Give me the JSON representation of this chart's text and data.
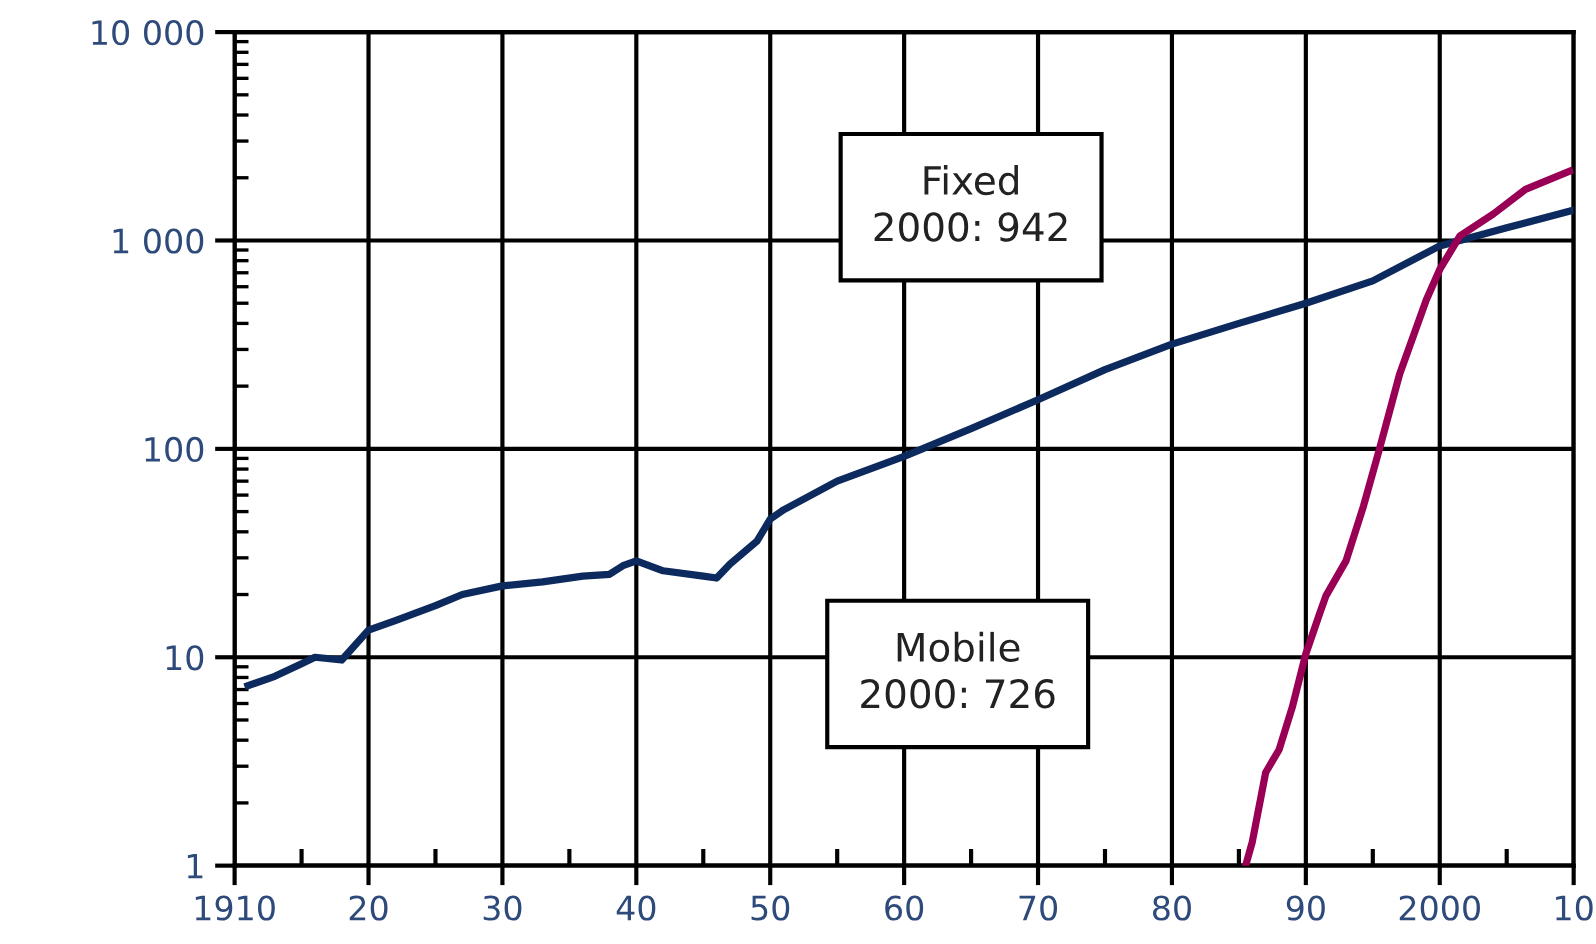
{
  "chart_data": {
    "type": "line",
    "log": "y",
    "grid": true,
    "marker": "none",
    "line_style": "solid",
    "xlim": [
      1910,
      2010
    ],
    "xticks": [
      1910,
      {
        "value": 1920,
        "label": "20"
      },
      {
        "value": 1930,
        "label": "30"
      },
      {
        "value": 1940,
        "label": "40"
      },
      {
        "value": 1950,
        "label": "50"
      },
      {
        "value": 1960,
        "label": "60"
      },
      {
        "value": 1970,
        "label": "70"
      },
      {
        "value": 1980,
        "label": "80"
      },
      {
        "value": 1990,
        "label": "90"
      },
      2000,
      {
        "value": 2010,
        "label": "10"
      }
    ],
    "ylim": [
      1,
      10000
    ],
    "yticks": [
      1,
      10,
      100,
      {
        "value": 1000,
        "label": "1 000"
      },
      {
        "value": 10000,
        "label": "10 000"
      }
    ],
    "series": [
      {
        "color": "#0d2a5e",
        "x": [
          1911,
          1913,
          1915,
          1916,
          1918,
          1920,
          1922,
          1925,
          1927,
          1930,
          1933,
          1936,
          1938,
          1939,
          1940,
          1942,
          1945,
          1946,
          1947,
          1949,
          1950,
          1951,
          1955,
          1960,
          1965,
          1970,
          1975,
          1980,
          1985,
          1990,
          1995,
          2000,
          2005,
          2010
        ],
        "values": [
          7.3,
          8.1,
          9.3,
          10,
          9.7,
          13.5,
          15,
          17.7,
          20,
          22,
          23,
          24.5,
          25,
          27.5,
          29,
          26,
          24.5,
          24,
          28,
          36,
          46,
          51,
          70,
          92,
          125,
          172,
          240,
          318,
          400,
          500,
          640,
          942,
          1150,
          1400
        ]
      },
      {
        "color": "#990055",
        "x": [
          1985.5,
          1986,
          1987,
          1988,
          1989,
          1990,
          1991,
          1991.5,
          1993,
          1994.3,
          1995.5,
          1997,
          1999,
          2000,
          2001.5,
          2004,
          2006.4,
          2009.7
        ],
        "values": [
          1,
          1.3,
          2.8,
          3.6,
          5.8,
          10.4,
          16,
          19.7,
          29,
          53,
          100,
          228,
          520,
          726,
          1050,
          1340,
          1760,
          2150
        ]
      }
    ],
    "annotations": [
      "Fixed\n2000: 942",
      "Mobile\n2000: 726"
    ]
  }
}
